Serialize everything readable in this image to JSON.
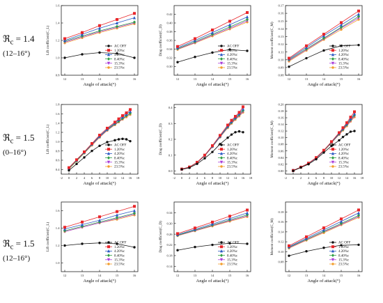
{
  "row_labels": [
    {
      "symbol": "ℜ",
      "sub": "c",
      "eq": "= 1.4",
      "range": "(12–16°)"
    },
    {
      "symbol": "ℜ",
      "sub": "c",
      "eq": "= 1.5",
      "range": "(0–16°)"
    },
    {
      "symbol": "ℜ",
      "sub": "c",
      "eq": "= 1.5",
      "range": "(12–16°)"
    }
  ],
  "legend_labels": [
    "AC OFF",
    "1.20%c",
    "4.20%c",
    "8.40%c",
    "15.3%c",
    "23.5%c"
  ],
  "series_colors": [
    "#111111",
    "#e8262a",
    "#2b59c3",
    "#2f9e44",
    "#a93bd8",
    "#f29e2e"
  ],
  "chart_data": [
    {
      "type": "line",
      "row": 0,
      "col": 0,
      "xlabel": "Angle of attack(°)",
      "ylabel": "Lift coefficient(C_L)",
      "xlim": [
        11.8,
        16.2
      ],
      "ylim": [
        0.8,
        1.6
      ],
      "xticks": [
        "12",
        "13",
        "14",
        "15",
        "16"
      ],
      "yticks": [
        "0.8",
        "1.0",
        "1.2",
        "1.4",
        "1.6"
      ],
      "x": [
        12,
        13,
        14,
        15,
        16
      ],
      "series": [
        {
          "name": "AC OFF",
          "values": [
            1.0,
            1.04,
            1.06,
            1.05,
            1.0
          ]
        },
        {
          "name": "1.20%c",
          "values": [
            1.22,
            1.29,
            1.37,
            1.44,
            1.51
          ]
        },
        {
          "name": "4.20%c",
          "values": [
            1.2,
            1.27,
            1.34,
            1.4,
            1.46
          ]
        },
        {
          "name": "8.40%c",
          "values": [
            1.19,
            1.25,
            1.31,
            1.36,
            1.41
          ]
        },
        {
          "name": "15.3%c",
          "values": [
            1.18,
            1.24,
            1.3,
            1.35,
            1.4
          ]
        },
        {
          "name": "23.5%c",
          "values": [
            1.17,
            1.23,
            1.29,
            1.34,
            1.39
          ]
        }
      ]
    },
    {
      "type": "line",
      "row": 0,
      "col": 1,
      "xlabel": "Angle of attack(°)",
      "ylabel": "Drag coefficient(C_D)",
      "xlim": [
        11.8,
        16.2
      ],
      "ylim": [
        0.28,
        0.44
      ],
      "xticks": [
        "12",
        "13",
        "14",
        "15",
        "16"
      ],
      "yticks": [
        "0.30",
        "0.32",
        "0.34",
        "0.36",
        "0.38",
        "0.40",
        "0.42"
      ],
      "x": [
        12,
        13,
        14,
        15,
        16
      ],
      "series": [
        {
          "name": "AC OFF",
          "values": [
            0.31,
            0.322,
            0.332,
            0.339,
            0.336
          ]
        },
        {
          "name": "1.20%c",
          "values": [
            0.346,
            0.364,
            0.384,
            0.404,
            0.424
          ]
        },
        {
          "name": "4.20%c",
          "values": [
            0.343,
            0.36,
            0.378,
            0.396,
            0.414
          ]
        },
        {
          "name": "8.40%c",
          "values": [
            0.341,
            0.357,
            0.374,
            0.391,
            0.408
          ]
        },
        {
          "name": "15.3%c",
          "values": [
            0.34,
            0.355,
            0.372,
            0.388,
            0.405
          ]
        },
        {
          "name": "23.5%c",
          "values": [
            0.339,
            0.354,
            0.37,
            0.386,
            0.402
          ]
        }
      ]
    },
    {
      "type": "line",
      "row": 0,
      "col": 2,
      "xlabel": "Angle of attack(°)",
      "ylabel": "Moment coefficient(C_M)",
      "xlim": [
        11.8,
        16.2
      ],
      "ylim": [
        0.08,
        0.17
      ],
      "xticks": [
        "12",
        "13",
        "14",
        "15",
        "16"
      ],
      "yticks": [
        "0.08",
        "0.09",
        "0.10",
        "0.11",
        "0.12",
        "0.13",
        "0.14",
        "0.15",
        "0.16",
        "0.17"
      ],
      "x": [
        12,
        13,
        14,
        15,
        16
      ],
      "series": [
        {
          "name": "AC OFF",
          "values": [
            0.091,
            0.102,
            0.112,
            0.118,
            0.119
          ]
        },
        {
          "name": "1.20%c",
          "values": [
            0.102,
            0.118,
            0.133,
            0.148,
            0.163
          ]
        },
        {
          "name": "4.20%c",
          "values": [
            0.101,
            0.116,
            0.131,
            0.145,
            0.159
          ]
        },
        {
          "name": "8.40%c",
          "values": [
            0.1,
            0.114,
            0.128,
            0.142,
            0.156
          ]
        },
        {
          "name": "15.3%c",
          "values": [
            0.099,
            0.113,
            0.127,
            0.141,
            0.154
          ]
        },
        {
          "name": "23.5%c",
          "values": [
            0.098,
            0.112,
            0.126,
            0.139,
            0.152
          ]
        }
      ]
    },
    {
      "type": "line",
      "row": 1,
      "col": 0,
      "xlabel": "Angle of attack(°)",
      "ylabel": "Lift coefficient(C_L)",
      "xlim": [
        -2,
        18
      ],
      "ylim": [
        0.3,
        1.8
      ],
      "xticks": [
        "-2",
        "0",
        "2",
        "4",
        "6",
        "8",
        "10",
        "12",
        "14",
        "16",
        "18"
      ],
      "yticks": [
        "0.4",
        "0.6",
        "0.8",
        "1.0",
        "1.2",
        "1.4",
        "1.6",
        "1.8"
      ],
      "x": [
        0,
        2,
        4,
        6,
        8,
        10,
        12,
        13,
        14,
        15,
        16
      ],
      "series": [
        {
          "name": "AC OFF",
          "values": [
            0.38,
            0.52,
            0.66,
            0.8,
            0.91,
            0.99,
            1.03,
            1.05,
            1.06,
            1.05,
            1.01
          ]
        },
        {
          "name": "1.20%c",
          "values": [
            0.44,
            0.61,
            0.78,
            0.96,
            1.14,
            1.29,
            1.42,
            1.49,
            1.56,
            1.62,
            1.69
          ]
        },
        {
          "name": "4.20%c",
          "values": [
            0.43,
            0.6,
            0.77,
            0.95,
            1.12,
            1.27,
            1.4,
            1.47,
            1.53,
            1.59,
            1.65
          ]
        },
        {
          "name": "8.40%c",
          "values": [
            0.42,
            0.59,
            0.76,
            0.94,
            1.11,
            1.26,
            1.38,
            1.44,
            1.5,
            1.56,
            1.61
          ]
        },
        {
          "name": "15.3%c",
          "values": [
            0.42,
            0.59,
            0.76,
            0.93,
            1.1,
            1.25,
            1.37,
            1.43,
            1.49,
            1.55,
            1.6
          ]
        },
        {
          "name": "23.5%c",
          "values": [
            0.41,
            0.58,
            0.75,
            0.92,
            1.09,
            1.24,
            1.36,
            1.42,
            1.48,
            1.53,
            1.58
          ]
        }
      ]
    },
    {
      "type": "line",
      "row": 1,
      "col": 1,
      "xlabel": "Angle of attack(°)",
      "ylabel": "Drag coefficient(C_D)",
      "xlim": [
        -2,
        18
      ],
      "ylim": [
        -0.02,
        0.42
      ],
      "xticks": [
        "-2",
        "0",
        "2",
        "4",
        "6",
        "8",
        "10",
        "12",
        "14",
        "16",
        "18"
      ],
      "yticks": [
        "0.0",
        "0.1",
        "0.2",
        "0.3",
        "0.4"
      ],
      "x": [
        0,
        2,
        4,
        6,
        8,
        10,
        12,
        13,
        14,
        15,
        16
      ],
      "series": [
        {
          "name": "AC OFF",
          "values": [
            0.01,
            0.02,
            0.045,
            0.08,
            0.12,
            0.17,
            0.21,
            0.23,
            0.245,
            0.25,
            0.245
          ]
        },
        {
          "name": "1.20%c",
          "values": [
            0.012,
            0.025,
            0.055,
            0.1,
            0.16,
            0.225,
            0.29,
            0.32,
            0.345,
            0.37,
            0.405
          ]
        },
        {
          "name": "4.20%c",
          "values": [
            0.012,
            0.025,
            0.054,
            0.098,
            0.157,
            0.22,
            0.283,
            0.313,
            0.338,
            0.362,
            0.392
          ]
        },
        {
          "name": "8.40%c",
          "values": [
            0.012,
            0.024,
            0.053,
            0.097,
            0.155,
            0.217,
            0.278,
            0.307,
            0.332,
            0.355,
            0.382
          ]
        },
        {
          "name": "15.3%c",
          "values": [
            0.011,
            0.024,
            0.052,
            0.096,
            0.153,
            0.215,
            0.275,
            0.304,
            0.328,
            0.35,
            0.375
          ]
        },
        {
          "name": "23.5%c",
          "values": [
            0.011,
            0.023,
            0.052,
            0.095,
            0.152,
            0.213,
            0.272,
            0.3,
            0.324,
            0.346,
            0.37
          ]
        }
      ]
    },
    {
      "type": "line",
      "row": 1,
      "col": 2,
      "xlabel": "Angle of attack(°)",
      "ylabel": "Moment coefficient(C_M)",
      "xlim": [
        -2,
        18
      ],
      "ylim": [
        -0.01,
        0.2
      ],
      "xticks": [
        "-2",
        "0",
        "2",
        "4",
        "6",
        "8",
        "10",
        "12",
        "14",
        "16",
        "18"
      ],
      "yticks": [
        "0.00",
        "0.02",
        "0.04",
        "0.06",
        "0.08",
        "0.10",
        "0.12",
        "0.14",
        "0.16",
        "0.18",
        "0.20"
      ],
      "x": [
        0,
        2,
        4,
        6,
        8,
        10,
        12,
        13,
        14,
        15,
        16
      ],
      "series": [
        {
          "name": "AC OFF",
          "values": [
            0.0,
            0.01,
            0.02,
            0.035,
            0.055,
            0.075,
            0.092,
            0.102,
            0.11,
            0.118,
            0.12
          ]
        },
        {
          "name": "1.20%c",
          "values": [
            0.001,
            0.011,
            0.023,
            0.04,
            0.062,
            0.088,
            0.115,
            0.13,
            0.145,
            0.162,
            0.178
          ]
        },
        {
          "name": "4.20%c",
          "values": [
            0.001,
            0.011,
            0.023,
            0.039,
            0.061,
            0.087,
            0.113,
            0.127,
            0.142,
            0.157,
            0.172
          ]
        },
        {
          "name": "8.40%c",
          "values": [
            0.001,
            0.011,
            0.022,
            0.039,
            0.06,
            0.086,
            0.111,
            0.125,
            0.139,
            0.154,
            0.168
          ]
        },
        {
          "name": "15.3%c",
          "values": [
            0.001,
            0.011,
            0.022,
            0.038,
            0.06,
            0.085,
            0.11,
            0.124,
            0.137,
            0.151,
            0.165
          ]
        },
        {
          "name": "23.5%c",
          "values": [
            0.001,
            0.01,
            0.022,
            0.038,
            0.059,
            0.084,
            0.109,
            0.122,
            0.135,
            0.149,
            0.162
          ]
        }
      ]
    },
    {
      "type": "line",
      "row": 2,
      "col": 0,
      "xlabel": "Angle of attack(°)",
      "ylabel": "Lift coefficient(C_L)",
      "xlim": [
        11.8,
        16.2
      ],
      "ylim": [
        0.9,
        1.7
      ],
      "xticks": [
        "12",
        "13",
        "14",
        "15",
        "16"
      ],
      "yticks": [
        "1.0",
        "1.2",
        "1.4",
        "1.6"
      ],
      "x": [
        12,
        13,
        14,
        15,
        16
      ],
      "series": [
        {
          "name": "AC OFF",
          "values": [
            1.2,
            1.22,
            1.23,
            1.22,
            1.18
          ]
        },
        {
          "name": "1.20%c",
          "values": [
            1.41,
            1.47,
            1.53,
            1.59,
            1.65
          ]
        },
        {
          "name": "4.20%c",
          "values": [
            1.39,
            1.44,
            1.49,
            1.55,
            1.6
          ]
        },
        {
          "name": "8.40%c",
          "values": [
            1.37,
            1.42,
            1.47,
            1.52,
            1.57
          ]
        },
        {
          "name": "15.3%c",
          "values": [
            1.36,
            1.41,
            1.46,
            1.51,
            1.56
          ]
        },
        {
          "name": "23.5%c",
          "values": [
            1.36,
            1.41,
            1.46,
            1.5,
            1.55
          ]
        }
      ]
    },
    {
      "type": "line",
      "row": 2,
      "col": 1,
      "xlabel": "Angle of attack(°)",
      "ylabel": "Drag coefficient(C_D)",
      "xlim": [
        11.8,
        16.2
      ],
      "ylim": [
        0.12,
        0.38
      ],
      "xticks": [
        "12",
        "13",
        "14",
        "15",
        "16"
      ],
      "yticks": [
        "0.14",
        "0.18",
        "0.22",
        "0.26",
        "0.30",
        "0.34"
      ],
      "x": [
        12,
        13,
        14,
        15,
        16
      ],
      "series": [
        {
          "name": "AC OFF",
          "values": [
            0.2,
            0.212,
            0.22,
            0.226,
            0.224
          ]
        },
        {
          "name": "1.20%c",
          "values": [
            0.262,
            0.283,
            0.305,
            0.327,
            0.35
          ]
        },
        {
          "name": "4.20%c",
          "values": [
            0.258,
            0.278,
            0.298,
            0.318,
            0.339
          ]
        },
        {
          "name": "8.40%c",
          "values": [
            0.256,
            0.275,
            0.294,
            0.313,
            0.332
          ]
        },
        {
          "name": "15.3%c",
          "values": [
            0.255,
            0.273,
            0.292,
            0.31,
            0.328
          ]
        },
        {
          "name": "23.5%c",
          "values": [
            0.254,
            0.272,
            0.29,
            0.308,
            0.325
          ]
        }
      ]
    },
    {
      "type": "line",
      "row": 2,
      "col": 2,
      "xlabel": "Angle of attack(°)",
      "ylabel": "Moment coefficient(C_M)",
      "xlim": [
        11.8,
        16.2
      ],
      "ylim": [
        0.06,
        0.2
      ],
      "xticks": [
        "12",
        "13",
        "14",
        "15",
        "16"
      ],
      "yticks": [
        "0.08",
        "0.10",
        "0.12",
        "0.14",
        "0.16",
        "0.18"
      ],
      "x": [
        12,
        13,
        14,
        15,
        16
      ],
      "series": [
        {
          "name": "AC OFF",
          "values": [
            0.092,
            0.101,
            0.108,
            0.113,
            0.114
          ]
        },
        {
          "name": "1.20%c",
          "values": [
            0.112,
            0.13,
            0.148,
            0.166,
            0.184
          ]
        },
        {
          "name": "4.20%c",
          "values": [
            0.11,
            0.127,
            0.144,
            0.161,
            0.178
          ]
        },
        {
          "name": "8.40%c",
          "values": [
            0.109,
            0.125,
            0.141,
            0.157,
            0.173
          ]
        },
        {
          "name": "15.3%c",
          "values": [
            0.108,
            0.124,
            0.14,
            0.155,
            0.171
          ]
        },
        {
          "name": "23.5%c",
          "values": [
            0.107,
            0.123,
            0.138,
            0.154,
            0.169
          ]
        }
      ]
    }
  ]
}
